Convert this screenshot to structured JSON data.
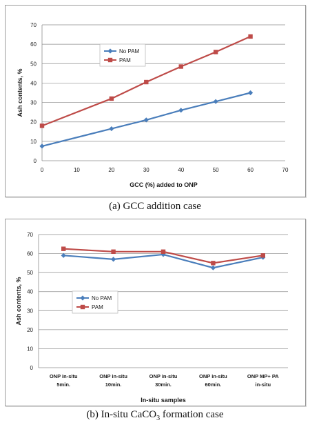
{
  "captions": {
    "a": "(a) GCC addition case",
    "b_prefix": "(b) In-situ CaCO",
    "b_sub": "3",
    "b_suffix": " formation case"
  },
  "chart_data": [
    {
      "type": "line",
      "xlabel": "GCC (%) added to ONP",
      "ylabel": "Ash contents, %",
      "xlim": [
        0,
        70
      ],
      "ylim": [
        0,
        70
      ],
      "xticks": [
        0,
        10,
        20,
        30,
        40,
        50,
        60,
        70
      ],
      "yticks": [
        0,
        10,
        20,
        30,
        40,
        50,
        60,
        70
      ],
      "grid": "horizontal",
      "legend": "upper-left inside plot",
      "x": [
        0,
        20,
        30,
        40,
        50,
        60
      ],
      "series": [
        {
          "name": "No PAM",
          "color": "#4a7ebb",
          "marker": "diamond",
          "values": [
            7.5,
            16.5,
            21,
            26,
            30.5,
            35
          ]
        },
        {
          "name": "PAM",
          "color": "#be4b48",
          "marker": "square",
          "values": [
            18,
            32,
            40.5,
            48.5,
            56,
            64
          ]
        }
      ]
    },
    {
      "type": "line",
      "xlabel": "In-situ samples",
      "ylabel": "Ash contents, %",
      "ylim": [
        0,
        70
      ],
      "yticks": [
        0,
        10,
        20,
        30,
        40,
        50,
        60,
        70
      ],
      "grid": "horizontal",
      "legend": "middle-left inside plot",
      "categories": [
        [
          "ONP in-situ",
          "5min."
        ],
        [
          "ONP in-situ",
          "10min."
        ],
        [
          "ONP in-situ",
          "30min."
        ],
        [
          "ONP in-situ",
          "60min."
        ],
        [
          "ONP MP+ PA",
          "in-situ"
        ]
      ],
      "series": [
        {
          "name": "No PAM",
          "color": "#4a7ebb",
          "marker": "diamond",
          "values": [
            59,
            57,
            59.5,
            52.5,
            58
          ]
        },
        {
          "name": "PAM",
          "color": "#be4b48",
          "marker": "square",
          "values": [
            62.5,
            61,
            61,
            55,
            59
          ]
        }
      ]
    }
  ]
}
